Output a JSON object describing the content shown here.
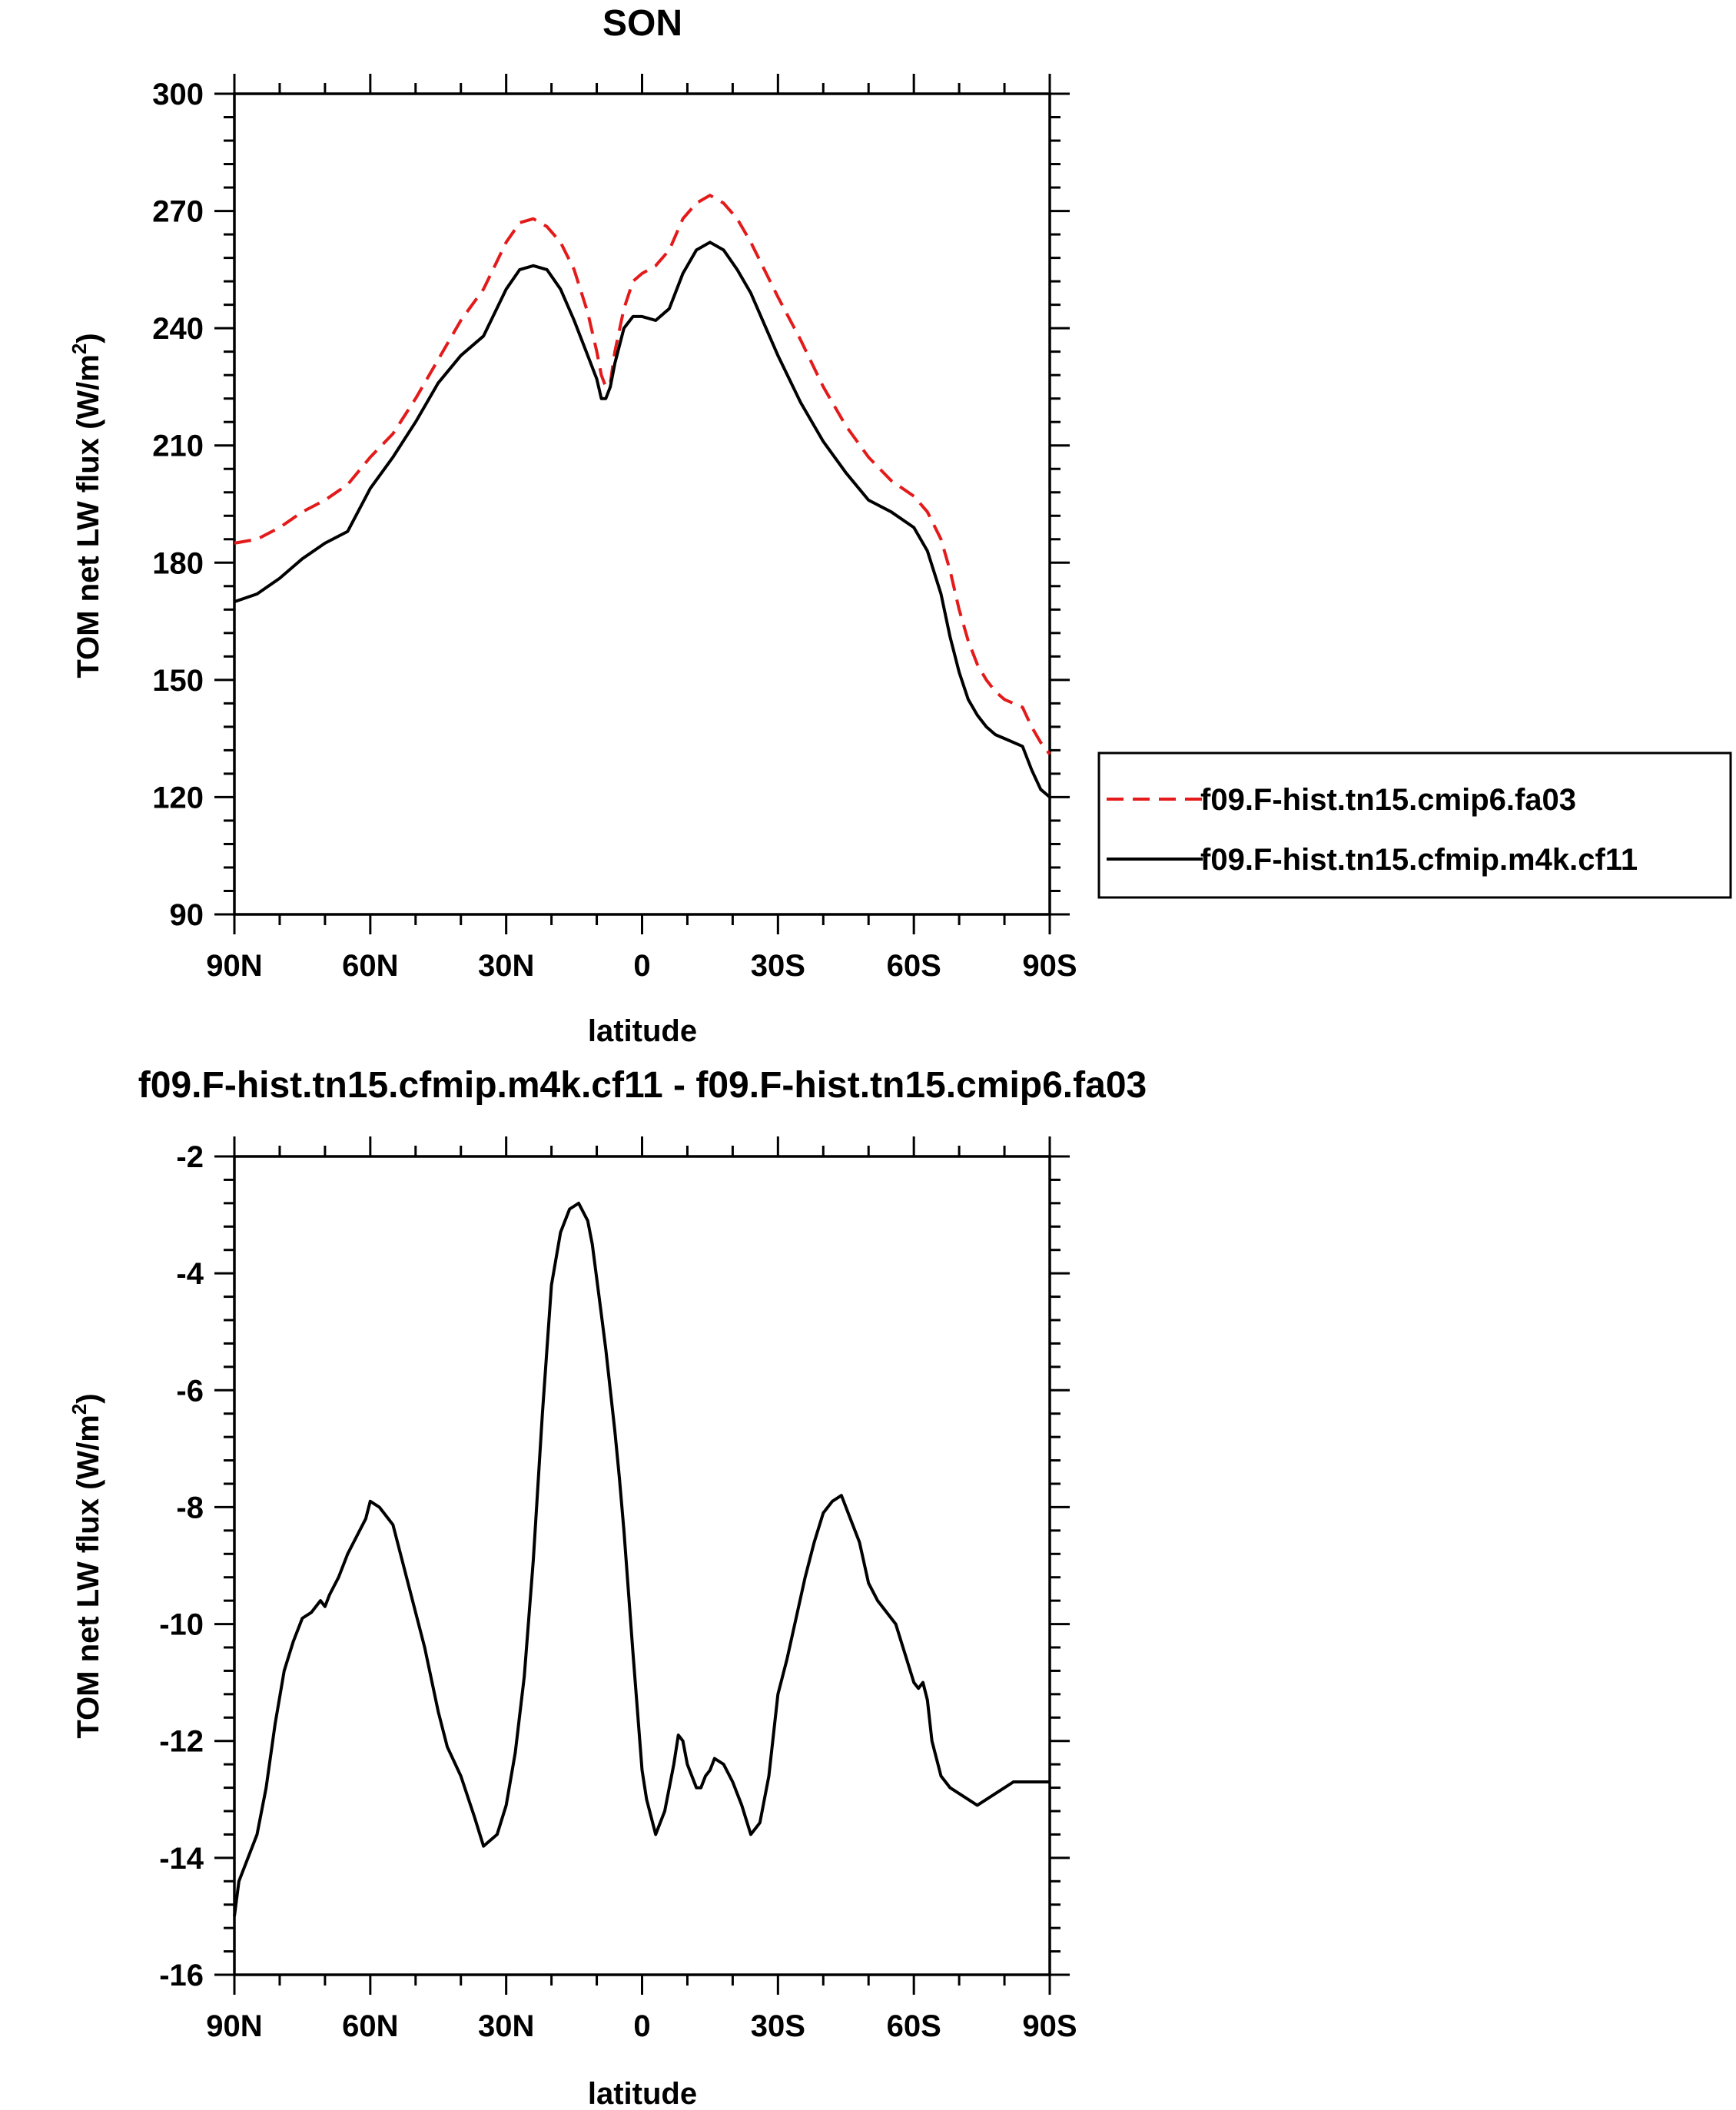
{
  "chart_data": [
    {
      "type": "line",
      "title": "SON",
      "xlabel": "latitude",
      "ylabel": "TOM net LW flux (W/m",
      "ylabel_sup": "2",
      "ylabel_close": ")",
      "xlim": [
        -90,
        90
      ],
      "ylim": [
        90,
        300
      ],
      "xticks": [
        -90,
        -60,
        -30,
        0,
        30,
        60,
        90
      ],
      "xtick_labels": [
        "90N",
        "60N",
        "30N",
        "0",
        "30S",
        "60S",
        "90S"
      ],
      "yticks": [
        90,
        120,
        150,
        180,
        210,
        240,
        270,
        300
      ],
      "ytick_labels": [
        "90",
        "120",
        "150",
        "180",
        "210",
        "240",
        "270",
        "300"
      ],
      "grid": false,
      "legend": "right, outside plot",
      "series": [
        {
          "name": "f09.F-hist.tn15.cmip6.fa03",
          "color": "#e41a1a",
          "style": "dashed",
          "x": [
            -90,
            -85,
            -80,
            -75,
            -70,
            -65,
            -60,
            -55,
            -50,
            -45,
            -40,
            -35,
            -30,
            -27,
            -24,
            -21,
            -18,
            -15,
            -12,
            -10,
            -9,
            -8,
            -7,
            -6,
            -4,
            -2,
            0,
            3,
            6,
            9,
            12,
            15,
            18,
            21,
            24,
            27,
            30,
            35,
            40,
            45,
            50,
            55,
            60,
            63,
            66,
            68,
            70,
            72,
            74,
            76,
            78,
            80,
            82,
            84,
            86,
            88,
            90
          ],
          "y": [
            185,
            186,
            189,
            193,
            196,
            200,
            207,
            213,
            222,
            232,
            242,
            250,
            262,
            267,
            268,
            266,
            262,
            255,
            244,
            234,
            228,
            225,
            226,
            234,
            245,
            252,
            254,
            256,
            260,
            268,
            272,
            274,
            272,
            268,
            262,
            255,
            248,
            237,
            225,
            215,
            207,
            201,
            197,
            193,
            186,
            178,
            168,
            160,
            154,
            150,
            147,
            145,
            144,
            143,
            138,
            134,
            131
          ]
        },
        {
          "name": "f09.F-hist.tn15.cfmip.m4k.cf11",
          "color": "#000000",
          "style": "solid",
          "x": [
            -90,
            -85,
            -80,
            -75,
            -70,
            -65,
            -60,
            -55,
            -50,
            -45,
            -40,
            -35,
            -30,
            -27,
            -24,
            -21,
            -18,
            -15,
            -12,
            -10,
            -9,
            -8,
            -7,
            -6,
            -4,
            -2,
            0,
            3,
            6,
            9,
            12,
            15,
            18,
            21,
            24,
            27,
            30,
            35,
            40,
            45,
            50,
            55,
            60,
            63,
            66,
            68,
            70,
            72,
            74,
            76,
            78,
            80,
            82,
            84,
            86,
            88,
            90
          ],
          "y": [
            170,
            172,
            176,
            181,
            185,
            188,
            199,
            207,
            216,
            226,
            233,
            238,
            250,
            255,
            256,
            255,
            250,
            242,
            233,
            227,
            222,
            222,
            225,
            231,
            240,
            243,
            243,
            242,
            245,
            254,
            260,
            262,
            260,
            255,
            249,
            241,
            233,
            221,
            211,
            203,
            196,
            193,
            189,
            183,
            172,
            161,
            152,
            145,
            141,
            138,
            136,
            135,
            134,
            133,
            127,
            122,
            120
          ]
        }
      ]
    },
    {
      "type": "line",
      "title": "f09.F-hist.tn15.cfmip.m4k.cf11 - f09.F-hist.tn15.cmip6.fa03",
      "xlabel": "latitude",
      "ylabel": "TOM net LW flux (W/m",
      "ylabel_sup": "2",
      "ylabel_close": ")",
      "xlim": [
        -90,
        90
      ],
      "ylim": [
        -16,
        -2
      ],
      "xticks": [
        -90,
        -60,
        -30,
        0,
        30,
        60,
        90
      ],
      "xtick_labels": [
        "90N",
        "60N",
        "30N",
        "0",
        "30S",
        "60S",
        "90S"
      ],
      "yticks": [
        -16,
        -14,
        -12,
        -10,
        -8,
        -6,
        -4,
        -2
      ],
      "ytick_labels": [
        "-16",
        "-14",
        "-12",
        "-10",
        "-8",
        "-6",
        "-4",
        "-2"
      ],
      "grid": false,
      "series": [
        {
          "color": "#000000",
          "style": "solid",
          "x": [
            -90,
            -89,
            -87,
            -85,
            -83,
            -81,
            -79,
            -77,
            -75,
            -73,
            -71,
            -70,
            -69,
            -67,
            -65,
            -63,
            -61,
            -60,
            -58,
            -57,
            -55,
            -53,
            -50,
            -48,
            -45,
            -43,
            -40,
            -37,
            -35,
            -32,
            -30,
            -28,
            -26,
            -24,
            -22,
            -20,
            -18,
            -16,
            -14,
            -12,
            -11,
            -10,
            -9,
            -8,
            -7,
            -6,
            -5,
            -4,
            -2,
            0,
            1,
            3,
            5,
            7,
            8,
            9,
            10,
            11,
            12,
            13,
            14,
            15,
            16,
            18,
            20,
            22,
            24,
            26,
            28,
            30,
            32,
            34,
            36,
            38,
            40,
            42,
            44,
            46,
            48,
            50,
            52,
            54,
            56,
            58,
            60,
            61,
            62,
            63,
            64,
            66,
            68,
            70,
            72,
            74,
            76,
            78,
            80,
            82,
            84,
            86,
            88,
            90
          ],
          "y": [
            -15.0,
            -14.4,
            -14.0,
            -13.6,
            -12.8,
            -11.7,
            -10.8,
            -10.3,
            -9.9,
            -9.8,
            -9.6,
            -9.7,
            -9.5,
            -9.2,
            -8.8,
            -8.5,
            -8.2,
            -7.9,
            -8.0,
            -8.1,
            -8.3,
            -8.9,
            -9.8,
            -10.4,
            -11.5,
            -12.1,
            -12.6,
            -13.3,
            -13.8,
            -13.6,
            -13.1,
            -12.2,
            -10.9,
            -8.9,
            -6.4,
            -4.2,
            -3.3,
            -2.9,
            -2.8,
            -3.1,
            -3.5,
            -4.1,
            -4.7,
            -5.3,
            -6.0,
            -6.7,
            -7.5,
            -8.4,
            -10.5,
            -12.5,
            -13.0,
            -13.6,
            -13.2,
            -12.4,
            -11.9,
            -12.0,
            -12.4,
            -12.6,
            -12.8,
            -12.8,
            -12.6,
            -12.5,
            -12.3,
            -12.4,
            -12.7,
            -13.1,
            -13.6,
            -13.4,
            -12.6,
            -11.2,
            -10.6,
            -9.9,
            -9.2,
            -8.6,
            -8.1,
            -7.9,
            -7.8,
            -8.2,
            -8.6,
            -9.3,
            -9.6,
            -9.8,
            -10.0,
            -10.5,
            -11.0,
            -11.1,
            -11.0,
            -11.3,
            -12.0,
            -12.6,
            -12.8,
            -12.9,
            -13.0,
            -13.1,
            -13.0,
            -12.9,
            -12.8,
            -12.7,
            -12.7,
            -12.7,
            -12.7,
            -12.7
          ],
          "note_name": ""
        }
      ]
    }
  ]
}
